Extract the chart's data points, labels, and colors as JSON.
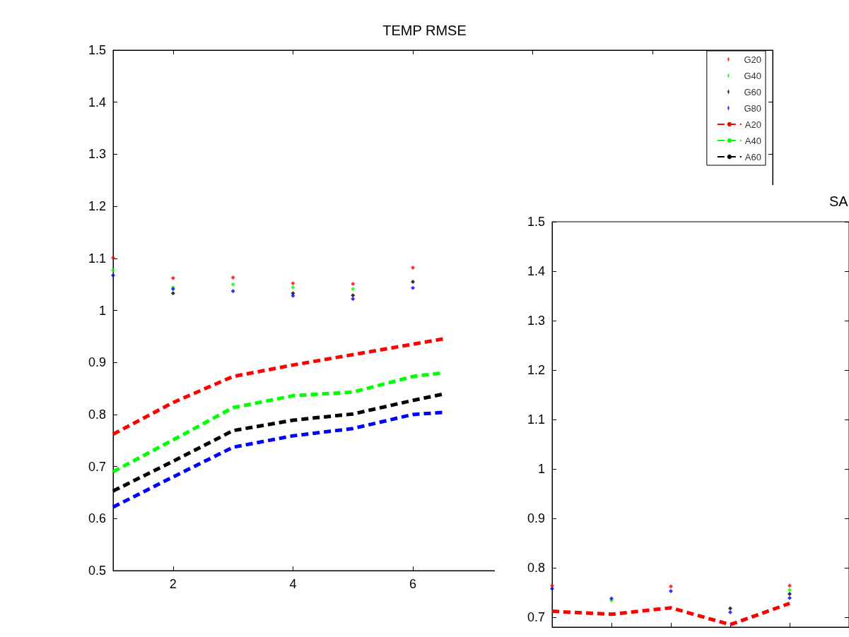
{
  "chart_data": [
    {
      "type": "line",
      "title": "TEMP RMSE",
      "xlim": [
        1,
        12
      ],
      "xticks": [
        2,
        4,
        6,
        {
          "value": 8,
          "label": null
        },
        {
          "value": 10,
          "label": null
        },
        {
          "value": 12,
          "label": null
        }
      ],
      "ylim": [
        0.5,
        1.5
      ],
      "yticks": [
        0.5,
        0.6,
        0.7,
        0.8,
        0.9,
        1,
        1.1,
        1.2,
        1.3,
        1.4,
        1.5
      ],
      "grid": false,
      "legend": "top right",
      "series": [
        {
          "name": "G20",
          "type": "scatter",
          "marker": "diamond",
          "color": "#ff0000",
          "x": [
            1,
            2,
            3,
            4,
            5,
            6
          ],
          "values": [
            1.101,
            1.062,
            1.063,
            1.052,
            1.051,
            1.082
          ]
        },
        {
          "name": "G40",
          "type": "scatter",
          "marker": "diamond",
          "color": "#00ff00",
          "x": [
            1,
            2,
            3,
            4,
            5
          ],
          "values": [
            1.077,
            1.044,
            1.05,
            1.044,
            1.041
          ]
        },
        {
          "name": "G60",
          "type": "scatter",
          "marker": "diamond",
          "color": "#000000",
          "x": [
            2,
            4,
            5,
            6
          ],
          "values": [
            1.033,
            1.033,
            1.029,
            1.055
          ]
        },
        {
          "name": "G80",
          "type": "scatter",
          "marker": "diamond",
          "color": "#0000ff",
          "x": [
            1,
            2,
            3,
            4,
            5,
            6
          ],
          "values": [
            1.067,
            1.041,
            1.037,
            1.028,
            1.022,
            1.043
          ]
        },
        {
          "name": "A20",
          "type": "line",
          "marker": "none",
          "line_style": "dashed",
          "color": "#ff0000",
          "x": [
            1,
            2,
            3,
            4,
            5,
            6,
            6.5
          ],
          "values": [
            0.762,
            0.823,
            0.873,
            0.895,
            0.915,
            0.935,
            0.945
          ]
        },
        {
          "name": "A40",
          "type": "line",
          "marker": "none",
          "line_style": "dashed",
          "color": "#00ff00",
          "x": [
            1,
            2,
            3,
            4,
            5,
            6,
            6.5
          ],
          "values": [
            0.69,
            0.751,
            0.813,
            0.836,
            0.843,
            0.873,
            0.88
          ]
        },
        {
          "name": "A60",
          "type": "line",
          "marker": "none",
          "line_style": "dashed",
          "color": "#000000",
          "x": [
            1,
            2,
            3,
            4,
            5,
            6,
            6.5
          ],
          "values": [
            0.653,
            0.71,
            0.769,
            0.789,
            0.801,
            0.827,
            0.839
          ]
        },
        {
          "type": "line",
          "marker": "none",
          "line_style": "dashed",
          "color": "#0000ff",
          "x": [
            1,
            2,
            3,
            4,
            5,
            6,
            6.5
          ],
          "values": [
            0.622,
            0.68,
            0.737,
            0.759,
            0.773,
            0.8,
            0.804
          ]
        }
      ]
    },
    {
      "type": "line",
      "title": "SA",
      "categories": [
        null,
        null,
        null,
        null,
        null,
        null
      ],
      "ylim": [
        0.68,
        1.5
      ],
      "yticks": [
        0.7,
        0.8,
        0.9,
        1,
        1.1,
        1.2,
        1.3,
        1.4,
        1.5
      ],
      "grid": false,
      "tick_labels": "y",
      "legend": false,
      "series": [
        {
          "type": "scatter",
          "marker": "diamond",
          "color": "#ff0000",
          "values": [
            0.764,
            null,
            0.762,
            null,
            0.764,
            null
          ]
        },
        {
          "type": "scatter",
          "marker": "diamond",
          "color": "#00ff00",
          "values": [
            null,
            0.734,
            null,
            null,
            0.755,
            null
          ]
        },
        {
          "type": "scatter",
          "marker": "diamond",
          "color": "#000000",
          "values": [
            null,
            null,
            null,
            0.718,
            0.747,
            null
          ]
        },
        {
          "type": "scatter",
          "marker": "diamond",
          "color": "#0000ff",
          "values": [
            0.758,
            0.738,
            0.753,
            0.71,
            0.739,
            null
          ]
        },
        {
          "type": "line",
          "marker": "none",
          "line_style": "dashed",
          "color": "#ff0000",
          "values": [
            0.712,
            0.706,
            0.719,
            0.685,
            0.728,
            null
          ]
        }
      ]
    }
  ]
}
